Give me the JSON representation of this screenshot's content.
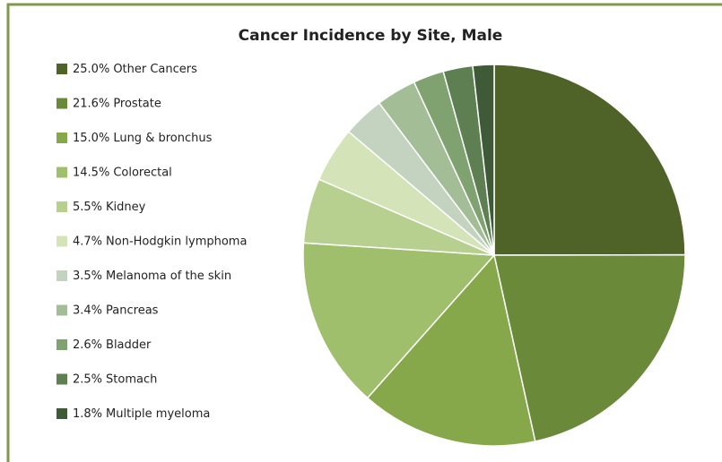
{
  "chart_data": {
    "type": "pie",
    "title": "Cancer Incidence by Site, Male",
    "categories": [
      "Other Cancers",
      "Prostate",
      "Lung & bronchus",
      "Colorectal",
      "Kidney",
      "Non-Hodgkin lymphoma",
      "Melanoma of the skin",
      "Pancreas",
      "Bladder",
      "Stomach",
      "Multiple myeloma"
    ],
    "values": [
      25.0,
      21.6,
      15.0,
      14.5,
      5.5,
      4.7,
      3.5,
      3.4,
      2.6,
      2.5,
      1.8
    ],
    "value_labels": [
      "25.0%",
      "21.6%",
      "15.0%",
      "14.5%",
      "5.5%",
      "4.7%",
      "3.5%",
      "3.4%",
      "2.6%",
      "2.5%",
      "1.8%"
    ],
    "colors": [
      "#4f6228",
      "#6a8a3a",
      "#86a84a",
      "#a0bf6c",
      "#b7d08f",
      "#d4e3b8",
      "#c4d3bf",
      "#a3bd96",
      "#7fa270",
      "#5d7f52",
      "#3f5a36"
    ],
    "legend": "left"
  }
}
